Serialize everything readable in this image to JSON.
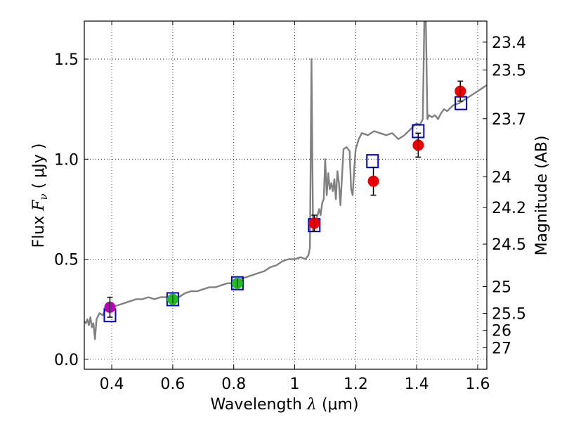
{
  "chart_data": {
    "type": "scatter",
    "xlabel_prefix": "Wavelength",
    "xlabel_symbol": "λ",
    "xlabel_unit": "(μm)",
    "ylabel_prefix": "Flux",
    "ylabel_symbol": "F",
    "ylabel_subscript": "ν",
    "ylabel_unit": "( μJy )",
    "y2label": "Magnitude (AB)",
    "xlim": [
      0.31,
      1.63
    ],
    "ylim": [
      -0.05,
      1.69
    ],
    "xticks": [
      0.4,
      0.6,
      0.8,
      1.0,
      1.2,
      1.4,
      1.6
    ],
    "xtick_labels": [
      "0.4",
      "0.6",
      "0.8",
      "1",
      "1.2",
      "1.4",
      "1.6"
    ],
    "yticks": [
      0.0,
      0.5,
      1.0,
      1.5
    ],
    "ytick_labels": [
      "0.0",
      "0.5",
      "1.0",
      "1.5"
    ],
    "mag_ticks": [
      23.4,
      23.5,
      23.7,
      24,
      24.2,
      24.5,
      25,
      25.5,
      26,
      27
    ],
    "mag_tick_labels": [
      "23.4",
      "23.5",
      "23.7",
      "24",
      "24.2",
      "24.5",
      "25",
      "25.5",
      "26",
      "27"
    ],
    "grid": true,
    "colors": {
      "spectrum": "#808080",
      "model_box": "#0000cc",
      "purple": "#bb00bb",
      "green": "#22bb22",
      "red": "#ee0000"
    },
    "spectrum": [
      [
        0.31,
        0.19
      ],
      [
        0.315,
        0.18
      ],
      [
        0.32,
        0.2
      ],
      [
        0.325,
        0.17
      ],
      [
        0.33,
        0.21
      ],
      [
        0.335,
        0.16
      ],
      [
        0.34,
        0.18
      ],
      [
        0.345,
        0.1
      ],
      [
        0.35,
        0.2
      ],
      [
        0.36,
        0.23
      ],
      [
        0.37,
        0.22
      ],
      [
        0.38,
        0.25
      ],
      [
        0.39,
        0.24
      ],
      [
        0.4,
        0.26
      ],
      [
        0.42,
        0.27
      ],
      [
        0.44,
        0.28
      ],
      [
        0.46,
        0.29
      ],
      [
        0.48,
        0.3
      ],
      [
        0.5,
        0.3
      ],
      [
        0.52,
        0.31
      ],
      [
        0.54,
        0.3
      ],
      [
        0.56,
        0.31
      ],
      [
        0.58,
        0.31
      ],
      [
        0.6,
        0.32
      ],
      [
        0.62,
        0.31
      ],
      [
        0.64,
        0.33
      ],
      [
        0.66,
        0.34
      ],
      [
        0.68,
        0.34
      ],
      [
        0.7,
        0.35
      ],
      [
        0.72,
        0.36
      ],
      [
        0.74,
        0.36
      ],
      [
        0.76,
        0.37
      ],
      [
        0.78,
        0.38
      ],
      [
        0.8,
        0.38
      ],
      [
        0.82,
        0.4
      ],
      [
        0.84,
        0.41
      ],
      [
        0.86,
        0.42
      ],
      [
        0.88,
        0.43
      ],
      [
        0.9,
        0.44
      ],
      [
        0.92,
        0.46
      ],
      [
        0.94,
        0.47
      ],
      [
        0.96,
        0.49
      ],
      [
        0.98,
        0.5
      ],
      [
        1.0,
        0.5
      ],
      [
        1.02,
        0.51
      ],
      [
        1.035,
        0.5
      ],
      [
        1.045,
        0.52
      ],
      [
        1.05,
        0.56
      ],
      [
        1.055,
        1.5
      ],
      [
        1.06,
        0.64
      ],
      [
        1.065,
        0.66
      ],
      [
        1.07,
        0.7
      ],
      [
        1.075,
        0.72
      ],
      [
        1.08,
        0.75
      ],
      [
        1.085,
        0.72
      ],
      [
        1.09,
        0.78
      ],
      [
        1.095,
        0.8
      ],
      [
        1.1,
        1.0
      ],
      [
        1.105,
        0.82
      ],
      [
        1.11,
        0.93
      ],
      [
        1.115,
        0.85
      ],
      [
        1.12,
        0.88
      ],
      [
        1.125,
        0.84
      ],
      [
        1.13,
        0.9
      ],
      [
        1.135,
        0.8
      ],
      [
        1.14,
        0.94
      ],
      [
        1.145,
        0.88
      ],
      [
        1.15,
        0.77
      ],
      [
        1.16,
        1.05
      ],
      [
        1.17,
        1.06
      ],
      [
        1.18,
        1.04
      ],
      [
        1.185,
        0.85
      ],
      [
        1.19,
        0.82
      ],
      [
        1.195,
        0.95
      ],
      [
        1.2,
        1.05
      ],
      [
        1.21,
        1.1
      ],
      [
        1.22,
        1.13
      ],
      [
        1.24,
        1.12
      ],
      [
        1.26,
        1.14
      ],
      [
        1.28,
        1.13
      ],
      [
        1.3,
        1.12
      ],
      [
        1.32,
        1.13
      ],
      [
        1.34,
        1.1
      ],
      [
        1.36,
        1.12
      ],
      [
        1.38,
        1.15
      ],
      [
        1.4,
        1.18
      ],
      [
        1.41,
        1.17
      ],
      [
        1.42,
        1.2
      ],
      [
        1.425,
        1.69
      ],
      [
        1.43,
        1.69
      ],
      [
        1.435,
        1.2
      ],
      [
        1.44,
        1.22
      ],
      [
        1.45,
        1.21
      ],
      [
        1.46,
        1.22
      ],
      [
        1.47,
        1.2
      ],
      [
        1.48,
        1.23
      ],
      [
        1.49,
        1.25
      ],
      [
        1.5,
        1.24
      ],
      [
        1.52,
        1.27
      ],
      [
        1.54,
        1.28
      ],
      [
        1.56,
        1.3
      ],
      [
        1.58,
        1.32
      ],
      [
        1.6,
        1.34
      ],
      [
        1.62,
        1.36
      ],
      [
        1.63,
        1.37
      ]
    ],
    "model_points": [
      {
        "x": 0.394,
        "y": 0.22
      },
      {
        "x": 0.6,
        "y": 0.3
      },
      {
        "x": 0.812,
        "y": 0.38
      },
      {
        "x": 1.064,
        "y": 0.67
      },
      {
        "x": 1.255,
        "y": 0.99
      },
      {
        "x": 1.405,
        "y": 1.14
      },
      {
        "x": 1.545,
        "y": 1.28
      }
    ],
    "observed_points": [
      {
        "x": 0.394,
        "y": 0.26,
        "err": 0.05,
        "color": "#bb00bb"
      },
      {
        "x": 0.6,
        "y": 0.3,
        "err": 0.02,
        "color": "#22bb22"
      },
      {
        "x": 0.812,
        "y": 0.38,
        "err": 0.02,
        "color": "#22bb22"
      },
      {
        "x": 1.064,
        "y": 0.68,
        "err": 0.04,
        "color": "#ee0000"
      },
      {
        "x": 1.258,
        "y": 0.89,
        "err": 0.07,
        "color": "#ee0000"
      },
      {
        "x": 1.405,
        "y": 1.07,
        "err": 0.06,
        "color": "#ee0000"
      },
      {
        "x": 1.543,
        "y": 1.34,
        "err": 0.05,
        "color": "#ee0000"
      }
    ]
  }
}
